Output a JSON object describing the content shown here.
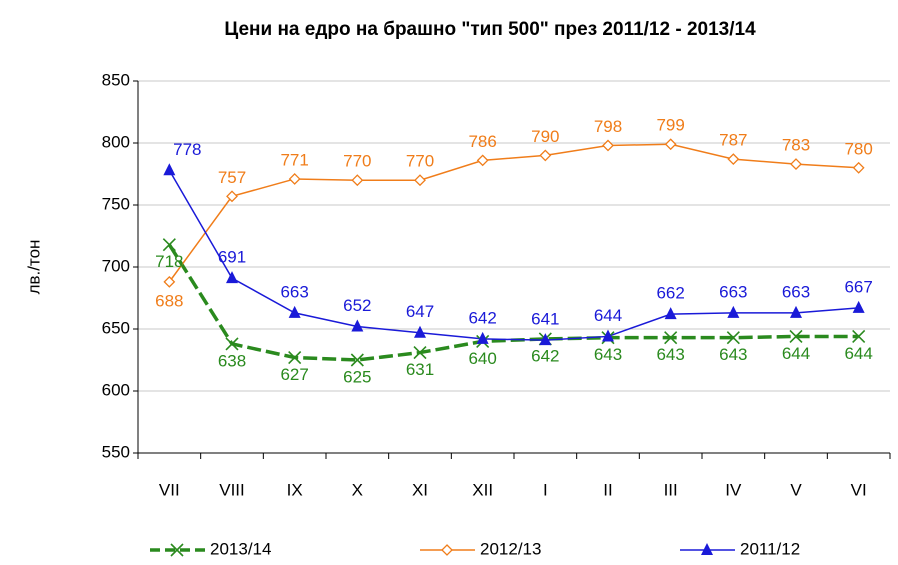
{
  "chart_data": {
    "type": "line",
    "title": "Цени на едро на брашно \"тип 500\" през 2011/12 - 2013/14",
    "y_label": "лв./тон",
    "categories": [
      "VII",
      "VIII",
      "IX",
      "X",
      "XI",
      "XII",
      "I",
      "II",
      "III",
      "IV",
      "V",
      "VI"
    ],
    "series": [
      {
        "name": "2013/14",
        "color": "#2a8a1e",
        "marker": "x",
        "dashed": true,
        "values": [
          718,
          638,
          627,
          625,
          631,
          640,
          642,
          643,
          643,
          643,
          644,
          644
        ]
      },
      {
        "name": "2012/13",
        "color": "#f07d1a",
        "marker": "diamond",
        "dashed": false,
        "values": [
          688,
          757,
          771,
          770,
          770,
          786,
          790,
          798,
          799,
          787,
          783,
          780
        ]
      },
      {
        "name": "2011/12",
        "color": "#1a1ad8",
        "marker": "triangle",
        "dashed": false,
        "values": [
          778,
          691,
          663,
          652,
          647,
          642,
          641,
          644,
          662,
          663,
          663,
          667
        ]
      }
    ],
    "ylim": [
      550,
      850
    ],
    "yticks": [
      550,
      600,
      650,
      700,
      750,
      800,
      850
    ],
    "grid": true,
    "legend": "bottom"
  }
}
